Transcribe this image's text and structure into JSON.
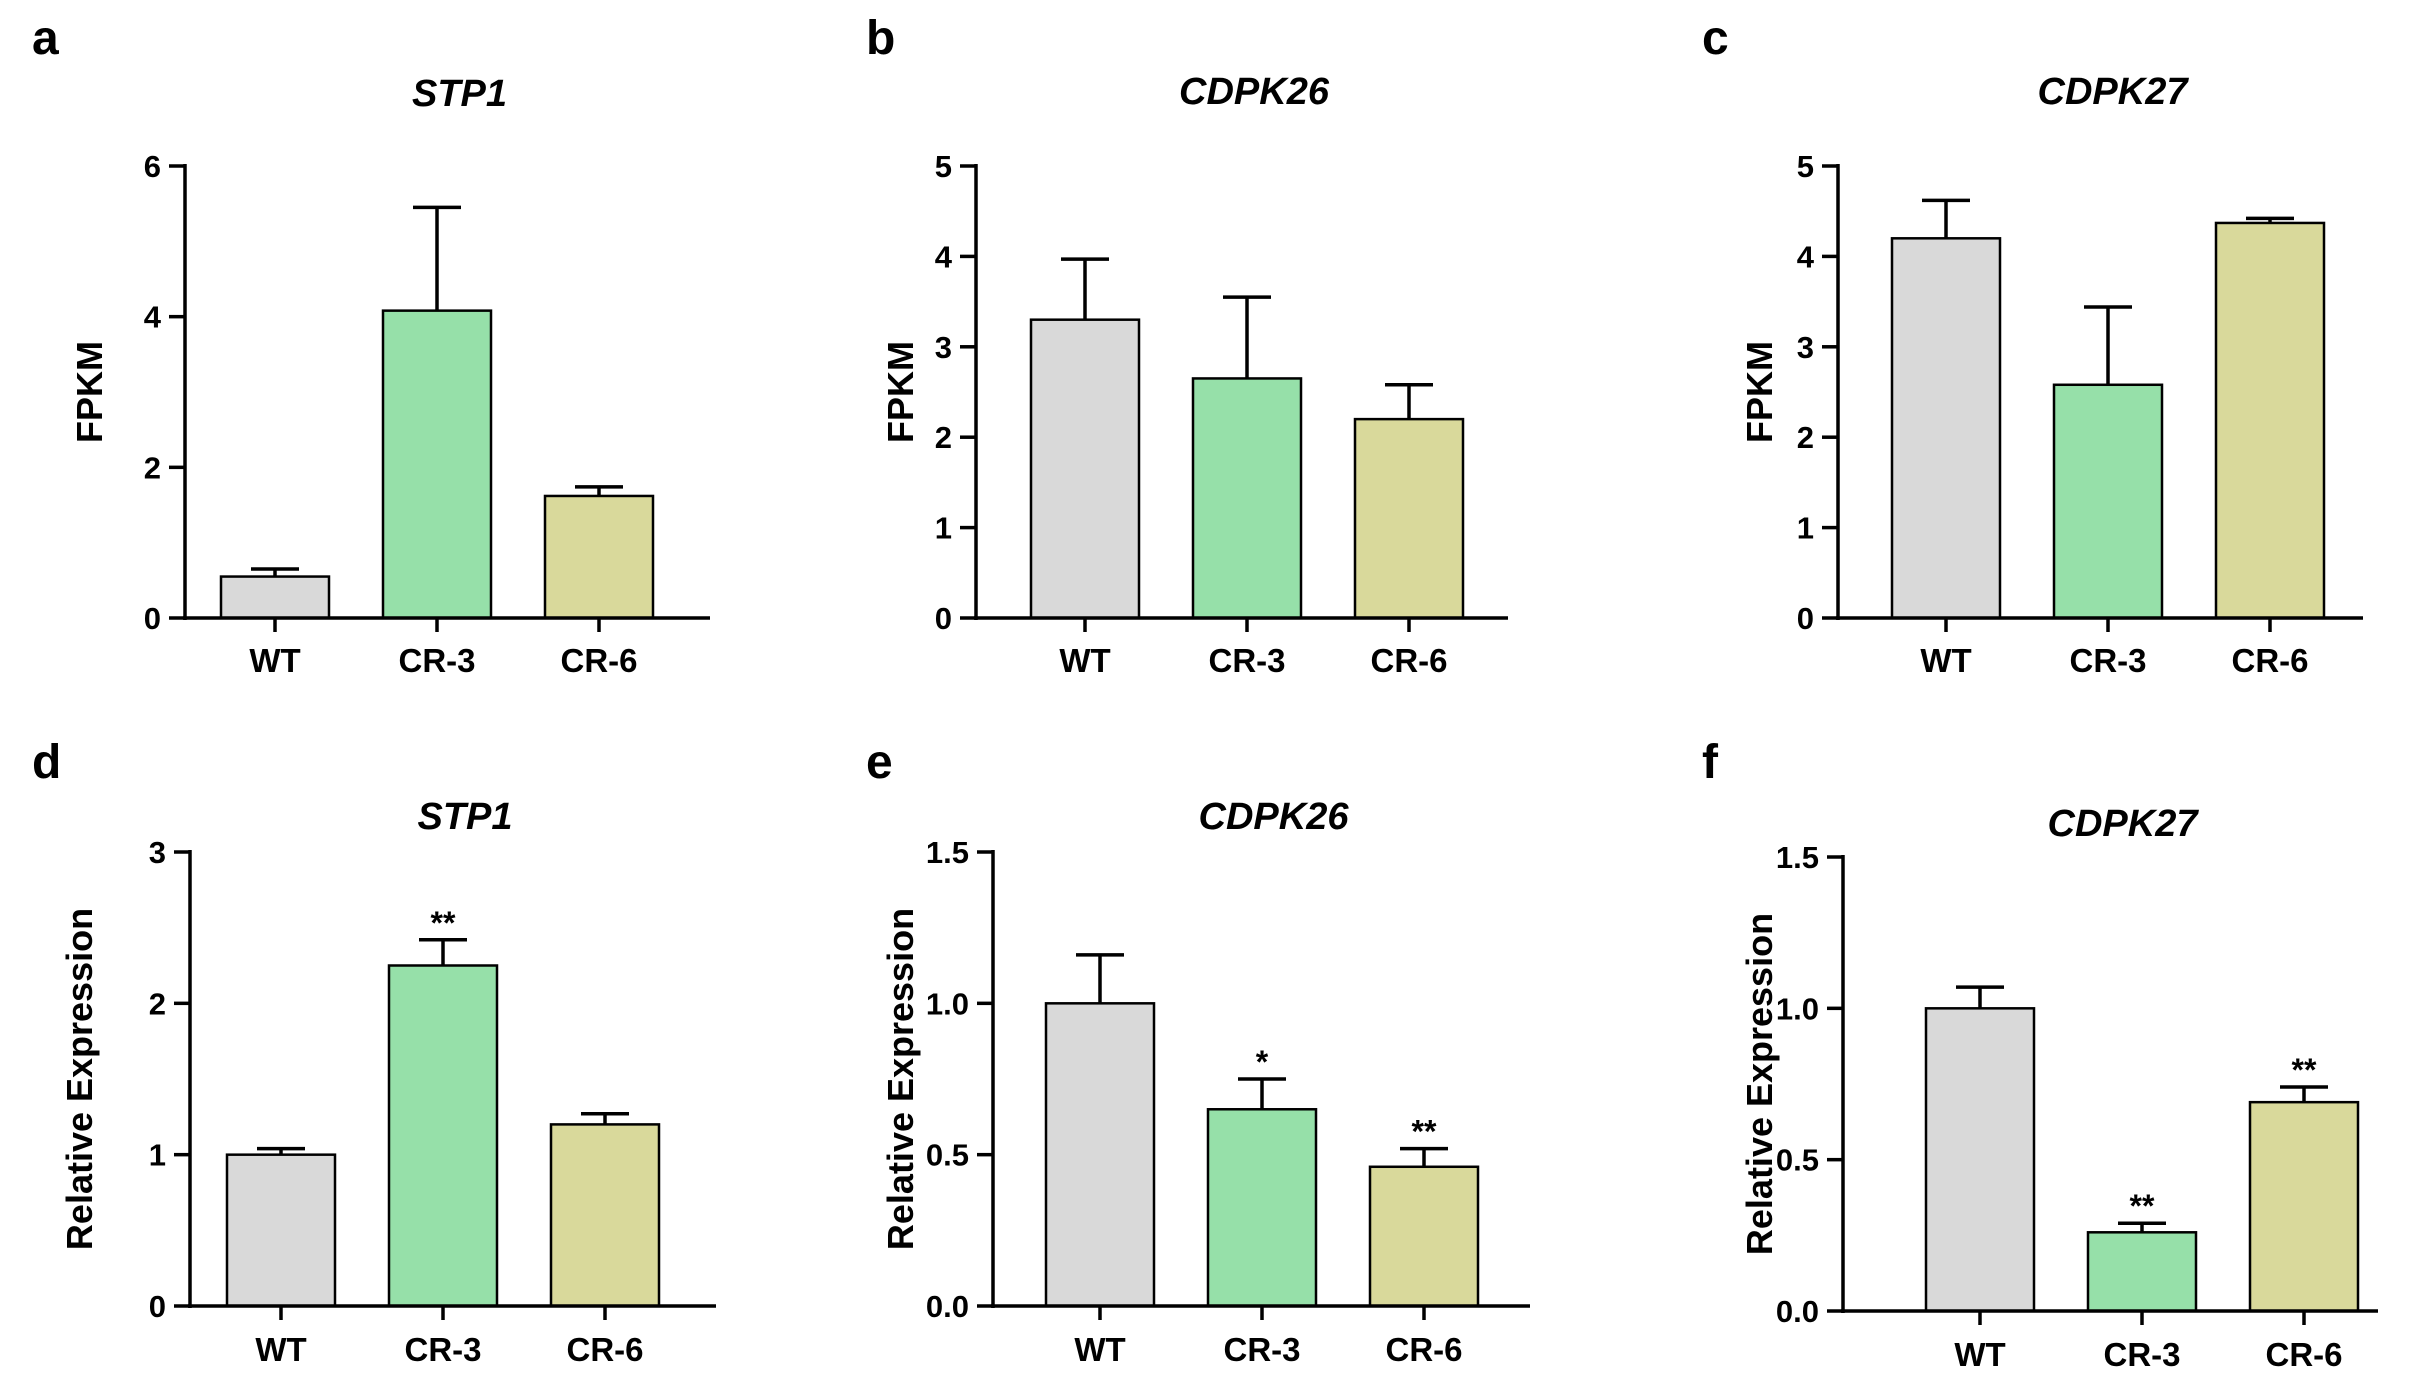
{
  "colors": {
    "WT": "#d9d9d9",
    "CR-3": "#96e0a9",
    "CR-6": "#d9d99b",
    "axis": "#000000"
  },
  "chart_data": [
    {
      "panel": "a",
      "type": "bar",
      "title": "STP1",
      "xlabel": "",
      "ylabel": "FPKM",
      "categories": [
        "WT",
        "CR-3",
        "CR-6"
      ],
      "values": [
        0.55,
        4.08,
        1.62
      ],
      "errors": [
        0.1,
        1.37,
        0.12
      ],
      "significance": [
        "",
        "",
        ""
      ],
      "ylim": [
        0,
        6
      ],
      "yticks": [
        0,
        2,
        4,
        6
      ],
      "ytick_labels": [
        "0",
        "2",
        "4",
        "6"
      ]
    },
    {
      "panel": "b",
      "type": "bar",
      "title": "CDPK26",
      "xlabel": "",
      "ylabel": "FPKM",
      "categories": [
        "WT",
        "CR-3",
        "CR-6"
      ],
      "values": [
        3.3,
        2.65,
        2.2
      ],
      "errors": [
        0.67,
        0.9,
        0.38
      ],
      "significance": [
        "",
        "",
        ""
      ],
      "ylim": [
        0,
        5
      ],
      "yticks": [
        0,
        1,
        2,
        3,
        4,
        5
      ],
      "ytick_labels": [
        "0",
        "1",
        "2",
        "3",
        "4",
        "5"
      ]
    },
    {
      "panel": "c",
      "type": "bar",
      "title": "CDPK27",
      "xlabel": "",
      "ylabel": "FPKM",
      "categories": [
        "WT",
        "CR-3",
        "CR-6"
      ],
      "values": [
        4.2,
        2.58,
        4.37
      ],
      "errors": [
        0.42,
        0.86,
        0.05
      ],
      "significance": [
        "",
        "",
        ""
      ],
      "ylim": [
        0,
        5
      ],
      "yticks": [
        0,
        1,
        2,
        3,
        4,
        5
      ],
      "ytick_labels": [
        "0",
        "1",
        "2",
        "3",
        "4",
        "5"
      ]
    },
    {
      "panel": "d",
      "type": "bar",
      "title": "STP1",
      "xlabel": "",
      "ylabel": "Relative Expression",
      "categories": [
        "WT",
        "CR-3",
        "CR-6"
      ],
      "values": [
        1.0,
        2.25,
        1.2
      ],
      "errors": [
        0.04,
        0.17,
        0.07
      ],
      "significance": [
        "",
        "**",
        ""
      ],
      "ylim": [
        0,
        3
      ],
      "yticks": [
        0,
        1,
        2,
        3
      ],
      "ytick_labels": [
        "0",
        "1",
        "2",
        "3"
      ]
    },
    {
      "panel": "e",
      "type": "bar",
      "title": "CDPK26",
      "xlabel": "",
      "ylabel": "Relative Expression",
      "categories": [
        "WT",
        "CR-3",
        "CR-6"
      ],
      "values": [
        1.0,
        0.65,
        0.46
      ],
      "errors": [
        0.16,
        0.1,
        0.06
      ],
      "significance": [
        "",
        "*",
        "**"
      ],
      "ylim": [
        0,
        1.5
      ],
      "yticks": [
        0,
        0.5,
        1.0,
        1.5
      ],
      "ytick_labels": [
        "0.0",
        "0.5",
        "1.0",
        "1.5"
      ]
    },
    {
      "panel": "f",
      "type": "bar",
      "title": "CDPK27",
      "xlabel": "",
      "ylabel": "Relative Expression",
      "categories": [
        "WT",
        "CR-3",
        "CR-6"
      ],
      "values": [
        1.0,
        0.26,
        0.69
      ],
      "errors": [
        0.07,
        0.03,
        0.05
      ],
      "significance": [
        "",
        "**",
        "**"
      ],
      "ylim": [
        0,
        1.5
      ],
      "yticks": [
        0,
        0.5,
        1.0,
        1.5
      ],
      "ytick_labels": [
        "0.0",
        "0.5",
        "1.0",
        "1.5"
      ]
    }
  ]
}
